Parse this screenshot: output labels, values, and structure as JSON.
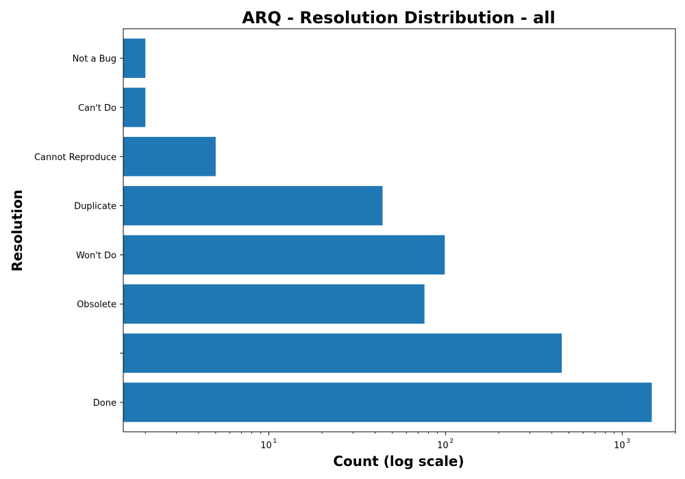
{
  "chart_data": {
    "type": "bar",
    "orientation": "horizontal",
    "title": "ARQ - Resolution Distribution - all",
    "xlabel": "Count (log scale)",
    "ylabel": "Resolution",
    "x_scale": "log",
    "xlim": [
      1.5,
      2000
    ],
    "x_ticks": [
      {
        "value": 10,
        "base": "10",
        "exp": "1"
      },
      {
        "value": 100,
        "base": "10",
        "exp": "2"
      },
      {
        "value": 1000,
        "base": "10",
        "exp": "3"
      }
    ],
    "categories": [
      "Done",
      "",
      "Obsolete",
      "Won't Do",
      "Duplicate",
      "Cannot Reproduce",
      "Can't Do",
      "Not a Bug"
    ],
    "values": [
      1470,
      455,
      76,
      99,
      44,
      5,
      2,
      2
    ],
    "color": "#1f77b4",
    "grid": false,
    "legend": "none"
  }
}
